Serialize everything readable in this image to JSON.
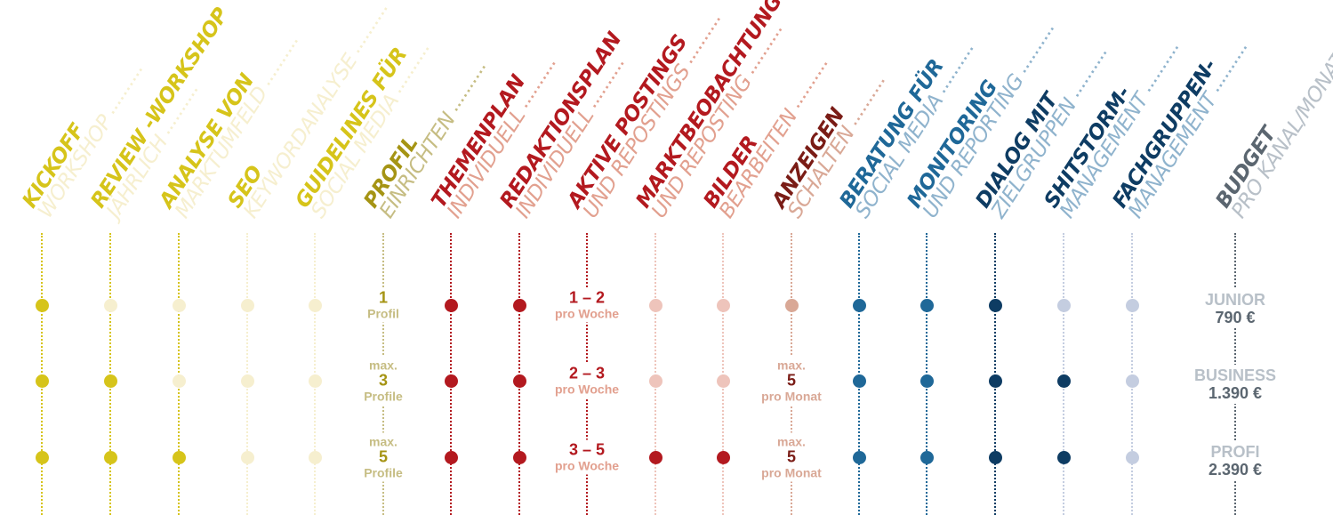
{
  "colors": {
    "yellow": "#d6c41a",
    "yellow_light": "#f6efcf",
    "olive": "#a59414",
    "olive_light": "#c6bd83",
    "red": "#b3191f",
    "red_light": "#eec4bb",
    "red_text_light": "#e2a08f",
    "brown": "#7a1c16",
    "brown_light": "#d9a896",
    "blue": "#1f6898",
    "blue_light": "#8fb3cd",
    "navy": "#0e3c63",
    "navy_light": "#c4cde0",
    "gray": "#5b6670",
    "gray_light": "#b8c0c8"
  },
  "columns": [
    {
      "id": "kickoff",
      "line1": "KICKOFF",
      "line2": "WORKSHOP",
      "c1": "yellow",
      "c2": "yellow_light",
      "cells": [
        {
          "dot": "yellow"
        },
        {
          "dot": "yellow"
        },
        {
          "dot": "yellow"
        }
      ]
    },
    {
      "id": "review",
      "line1": "REVIEW -WORKSHOP",
      "line2": "JÄHRLICH",
      "c1": "yellow",
      "c2": "yellow_light",
      "cells": [
        {
          "dot": "yellow_light"
        },
        {
          "dot": "yellow"
        },
        {
          "dot": "yellow"
        }
      ]
    },
    {
      "id": "analyse",
      "line1": "ANALYSE VON",
      "line2": "MARKTUMFELD",
      "c1": "yellow",
      "c2": "yellow_light",
      "cells": [
        {
          "dot": "yellow_light"
        },
        {
          "dot": "yellow_light"
        },
        {
          "dot": "yellow"
        }
      ]
    },
    {
      "id": "seo",
      "line1": "SEO",
      "line2": "KEYWORDANALYSE",
      "c1": "yellow",
      "c2": "yellow_light",
      "cells": [
        {
          "dot": "yellow_light"
        },
        {
          "dot": "yellow_light"
        },
        {
          "dot": "yellow_light"
        }
      ]
    },
    {
      "id": "guidelines",
      "line1": "GUIDELINES FÜR",
      "line2": "SOCIAL MEDIA",
      "c1": "yellow",
      "c2": "yellow_light",
      "cells": [
        {
          "dot": "yellow_light"
        },
        {
          "dot": "yellow_light"
        },
        {
          "dot": "yellow_light"
        }
      ]
    },
    {
      "id": "profil",
      "line1": "PROFIL",
      "line2": "EINRICHTEN",
      "c1": "olive",
      "c2": "olive_light",
      "cells": [
        {
          "pre": "",
          "main": "1",
          "post": "Profil",
          "mc": "olive",
          "sc": "olive_light"
        },
        {
          "pre": "max.",
          "main": "3",
          "post": "Profile",
          "mc": "olive",
          "sc": "olive_light"
        },
        {
          "pre": "max.",
          "main": "5",
          "post": "Profile",
          "mc": "olive",
          "sc": "olive_light"
        }
      ]
    },
    {
      "id": "themenplan",
      "line1": "THEMENPLAN",
      "line2": "INDIVIDUELL",
      "c1": "red",
      "c2": "red_text_light",
      "cells": [
        {
          "dot": "red"
        },
        {
          "dot": "red"
        },
        {
          "dot": "red"
        }
      ]
    },
    {
      "id": "redaktionsplan",
      "line1": "REDAKTIONSPLAN",
      "line2": "INDIVIDUELL",
      "c1": "red",
      "c2": "red_text_light",
      "cells": [
        {
          "dot": "red"
        },
        {
          "dot": "red"
        },
        {
          "dot": "red"
        }
      ]
    },
    {
      "id": "aktive",
      "line1": "AKTIVE POSTINGS",
      "line2": "UND REPOSTINGS",
      "c1": "red",
      "c2": "red_text_light",
      "cells": [
        {
          "pre": "",
          "main": "1 – 2",
          "post": "pro Woche",
          "mc": "red",
          "sc": "red_text_light"
        },
        {
          "pre": "",
          "main": "2 – 3",
          "post": "pro Woche",
          "mc": "red",
          "sc": "red_text_light"
        },
        {
          "pre": "",
          "main": "3 – 5",
          "post": "pro Woche",
          "mc": "red",
          "sc": "red_text_light"
        }
      ]
    },
    {
      "id": "markt",
      "line1": "MARKTBEOBACHTUNG",
      "line2": "UND REPOSTING",
      "c1": "red",
      "c2": "red_text_light",
      "cells": [
        {
          "dot": "red_light"
        },
        {
          "dot": "red_light"
        },
        {
          "dot": "red"
        }
      ]
    },
    {
      "id": "bilder",
      "line1": "BILDER",
      "line2": "BEARBEITEN",
      "c1": "red",
      "c2": "red_text_light",
      "cells": [
        {
          "dot": "red_light"
        },
        {
          "dot": "red_light"
        },
        {
          "dot": "red"
        }
      ]
    },
    {
      "id": "anzeigen",
      "line1": "ANZEIGEN",
      "line2": "SCHALTEN",
      "c1": "brown",
      "c2": "brown_light",
      "cells": [
        {
          "dot": "brown_light"
        },
        {
          "pre": "max.",
          "main": "5",
          "post": "pro Monat",
          "mc": "brown",
          "sc": "brown_light"
        },
        {
          "pre": "max.",
          "main": "5",
          "post": "pro Monat",
          "mc": "brown",
          "sc": "brown_light"
        }
      ]
    },
    {
      "id": "beratung",
      "line1": "BERATUNG FÜR",
      "line2": "SOCIAL MEDIA",
      "c1": "blue",
      "c2": "blue_light",
      "cells": [
        {
          "dot": "blue"
        },
        {
          "dot": "blue"
        },
        {
          "dot": "blue"
        }
      ]
    },
    {
      "id": "monitoring",
      "line1": "MONITORING",
      "line2": "UND REPORTING",
      "c1": "blue",
      "c2": "blue_light",
      "cells": [
        {
          "dot": "blue"
        },
        {
          "dot": "blue"
        },
        {
          "dot": "blue"
        }
      ]
    },
    {
      "id": "dialog",
      "line1": "DIALOG MIT",
      "line2": "ZIELGRUPPEN",
      "c1": "navy",
      "c2": "blue_light",
      "cells": [
        {
          "dot": "navy"
        },
        {
          "dot": "navy"
        },
        {
          "dot": "navy"
        }
      ]
    },
    {
      "id": "shitstorm",
      "line1": "SHITSTORM-",
      "line2": "MANAGEMENT",
      "c1": "navy",
      "c2": "blue_light",
      "cells": [
        {
          "dot": "navy_light"
        },
        {
          "dot": "navy"
        },
        {
          "dot": "navy"
        }
      ]
    },
    {
      "id": "fachgruppen",
      "line1": "FACHGRUPPEN-",
      "line2": "MANAGEMENT",
      "c1": "navy",
      "c2": "blue_light",
      "cells": [
        {
          "dot": "navy_light"
        },
        {
          "dot": "navy_light"
        },
        {
          "dot": "navy_light"
        }
      ]
    },
    {
      "id": "budget",
      "line1": "BUDGET",
      "line2": "PRO KANAL/MONAT",
      "c1": "gray",
      "c2": "gray_light",
      "cells": [
        {
          "tier": "JUNIOR",
          "price": "790 €"
        },
        {
          "tier": "BUSINESS",
          "price": "1.390 €"
        },
        {
          "tier": "PROFI",
          "price": "2.390 €"
        }
      ]
    }
  ]
}
